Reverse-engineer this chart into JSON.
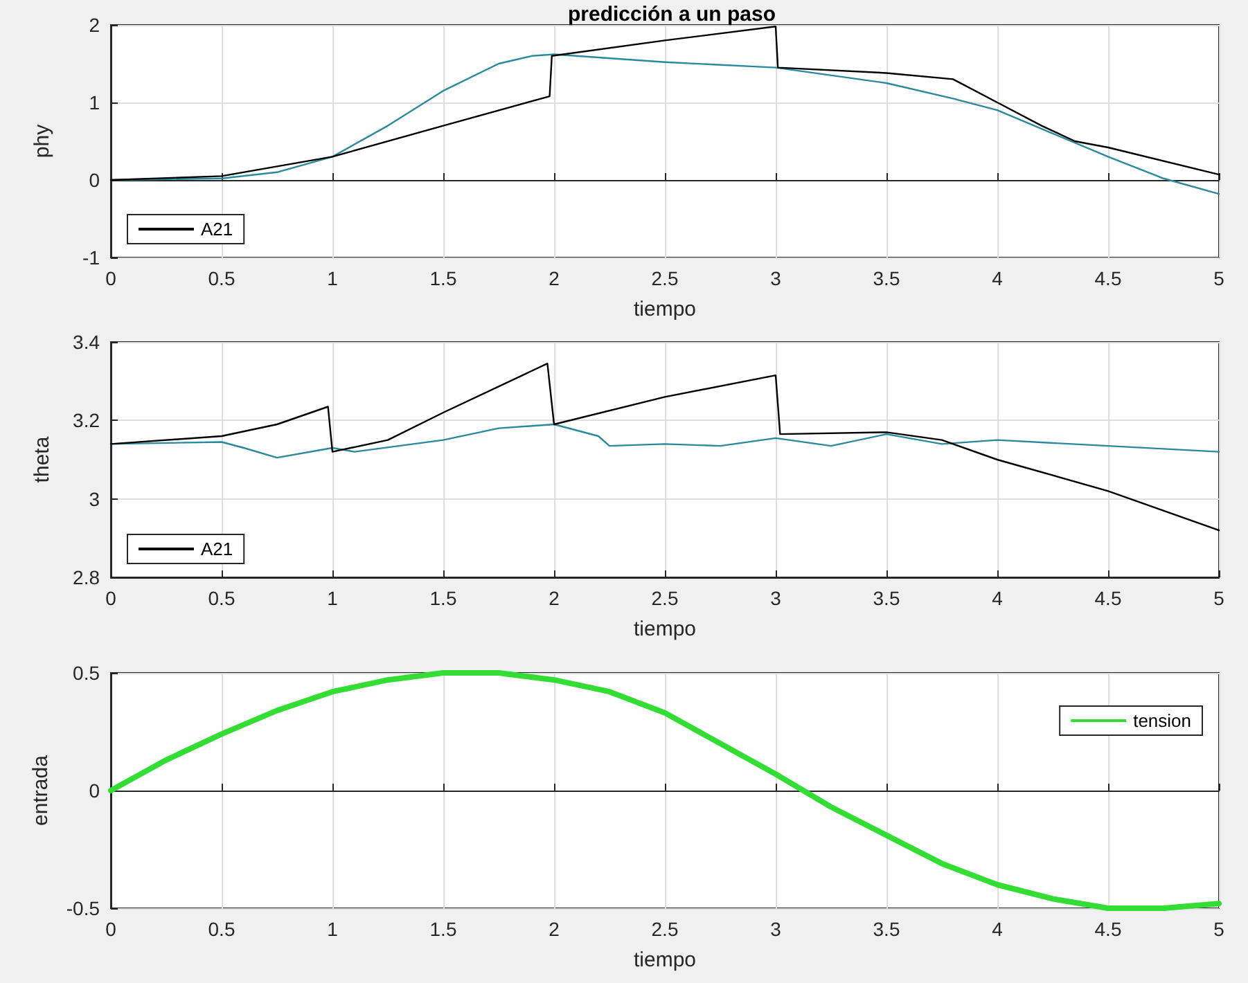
{
  "chart_data": [
    {
      "type": "line",
      "title": "predicción a un paso",
      "xlabel": "tiempo",
      "ylabel": "phy",
      "xlim": [
        0,
        5
      ],
      "xticks": [
        0,
        0.5,
        1,
        1.5,
        2,
        2.5,
        3,
        3.5,
        4,
        4.5,
        5
      ],
      "ylim": [
        -1,
        2
      ],
      "yticks": [
        -1,
        0,
        1,
        2
      ],
      "grid": true,
      "legend": "bottom left",
      "marker": "none",
      "line_style": "solid",
      "series": [
        {
          "color": "#2a8a9c",
          "x": [
            0,
            0.5,
            0.75,
            1,
            1.25,
            1.5,
            1.75,
            1.9,
            2,
            2.5,
            3,
            3.5,
            3.8,
            4,
            4.25,
            4.5,
            4.75,
            5
          ],
          "values": [
            0,
            0.02,
            0.1,
            0.3,
            0.7,
            1.15,
            1.5,
            1.6,
            1.62,
            1.52,
            1.45,
            1.25,
            1.05,
            0.9,
            0.6,
            0.3,
            0.02,
            -0.18
          ]
        },
        {
          "name": "A21",
          "color": "#000000",
          "x": [
            0,
            0.5,
            1,
            1.5,
            1.98,
            1.99,
            2.5,
            3,
            3.01,
            3.5,
            3.8,
            4,
            4.2,
            4.35,
            4.5,
            5
          ],
          "values": [
            0,
            0.05,
            0.3,
            0.7,
            1.08,
            1.6,
            1.8,
            1.98,
            1.45,
            1.38,
            1.3,
            1.0,
            0.7,
            0.5,
            0.42,
            0.07
          ]
        }
      ]
    },
    {
      "type": "line",
      "xlabel": "tiempo",
      "ylabel": "theta",
      "xlim": [
        0,
        5
      ],
      "xticks": [
        0,
        0.5,
        1,
        1.5,
        2,
        2.5,
        3,
        3.5,
        4,
        4.5,
        5
      ],
      "ylim": [
        2.8,
        3.4
      ],
      "yticks": [
        2.8,
        3,
        3.2,
        3.4
      ],
      "grid": true,
      "legend": "bottom left",
      "marker": "none",
      "line_style": "solid",
      "series": [
        {
          "color": "#2a8a9c",
          "x": [
            0,
            0.5,
            0.6,
            0.75,
            1,
            1.1,
            1.5,
            1.75,
            2,
            2.2,
            2.25,
            2.5,
            2.75,
            3,
            3.25,
            3.5,
            3.75,
            4,
            4.5,
            5
          ],
          "values": [
            3.14,
            3.145,
            3.13,
            3.105,
            3.13,
            3.12,
            3.15,
            3.18,
            3.19,
            3.16,
            3.135,
            3.14,
            3.135,
            3.155,
            3.135,
            3.165,
            3.14,
            3.15,
            3.135,
            3.12
          ]
        },
        {
          "name": "A21",
          "color": "#000000",
          "x": [
            0,
            0.5,
            0.75,
            0.98,
            1,
            1.25,
            1.5,
            1.97,
            2,
            2.5,
            3,
            3.02,
            3.5,
            3.75,
            4,
            4.5,
            5
          ],
          "values": [
            3.14,
            3.16,
            3.19,
            3.235,
            3.12,
            3.15,
            3.22,
            3.345,
            3.19,
            3.26,
            3.315,
            3.165,
            3.17,
            3.15,
            3.1,
            3.02,
            2.92
          ]
        }
      ]
    },
    {
      "type": "line",
      "xlabel": "tiempo",
      "ylabel": "entrada",
      "xlim": [
        0,
        5
      ],
      "xticks": [
        0,
        0.5,
        1,
        1.5,
        2,
        2.5,
        3,
        3.5,
        4,
        4.5,
        5
      ],
      "ylim": [
        -0.5,
        0.5
      ],
      "yticks": [
        -0.5,
        0,
        0.5
      ],
      "grid": true,
      "legend": "top right",
      "marker": "none",
      "line_style": "solid",
      "series": [
        {
          "name": "tension",
          "color": "#33dd33",
          "x": [
            0,
            0.25,
            0.5,
            0.75,
            1,
            1.25,
            1.5,
            1.75,
            2,
            2.25,
            2.5,
            2.75,
            3,
            3.25,
            3.5,
            3.75,
            4,
            4.25,
            4.5,
            4.75,
            5
          ],
          "values": [
            0,
            0.13,
            0.24,
            0.34,
            0.42,
            0.47,
            0.5,
            0.5,
            0.47,
            0.42,
            0.33,
            0.2,
            0.07,
            -0.07,
            -0.19,
            -0.31,
            -0.4,
            -0.46,
            -0.5,
            -0.5,
            -0.48
          ]
        }
      ]
    }
  ]
}
